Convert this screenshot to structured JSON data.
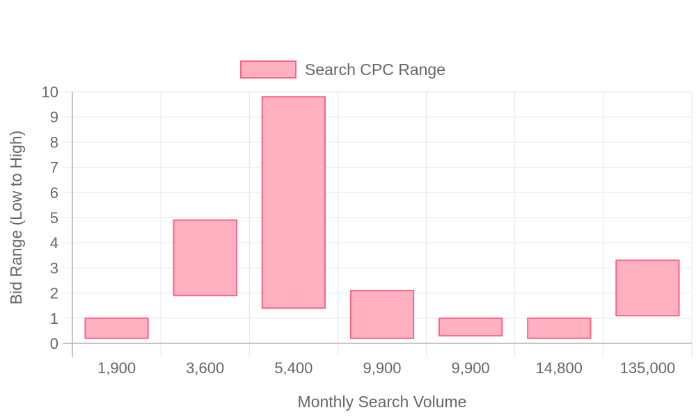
{
  "colors": {
    "bar_fill": "#ffb1c1",
    "bar_stroke": "#ff6384",
    "grid": "#e5e5e5",
    "axis": "#b3b3b3",
    "text": "#666666"
  },
  "chart_data": {
    "type": "bar",
    "subtype": "floating-range",
    "legend": {
      "position": "top",
      "labels": [
        "Search CPC Range"
      ]
    },
    "grid": true,
    "xlabel": "Monthly Search Volume",
    "ylabel": "Bid Range (Low to High)",
    "ylim": [
      0,
      10
    ],
    "yticks": [
      "0",
      "1",
      "2",
      "3",
      "4",
      "5",
      "6",
      "7",
      "8",
      "9",
      "10"
    ],
    "categories": [
      "1,900",
      "3,600",
      "5,400",
      "9,900",
      "9,900",
      "14,800",
      "135,000"
    ],
    "series": [
      {
        "name": "Search CPC Range",
        "values": [
          [
            0.2,
            1.0
          ],
          [
            1.9,
            4.9
          ],
          [
            1.4,
            9.8
          ],
          [
            0.2,
            2.1
          ],
          [
            0.3,
            1.0
          ],
          [
            0.2,
            1.0
          ],
          [
            1.1,
            3.3
          ]
        ]
      }
    ]
  }
}
